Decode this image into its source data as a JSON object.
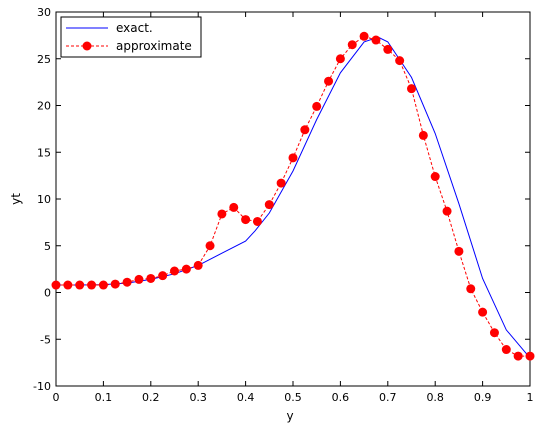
{
  "chart_data": {
    "type": "line",
    "title": "",
    "xlabel": "y",
    "ylabel": "yt",
    "xlim": [
      0,
      1
    ],
    "ylim": [
      -10,
      30
    ],
    "x_ticks": [
      "0",
      "0.1",
      "0.2",
      "0.3",
      "0.4",
      "0.5",
      "0.6",
      "0.7",
      "0.8",
      "0.9",
      "1"
    ],
    "y_ticks": [
      "-10",
      "-5",
      "0",
      "5",
      "10",
      "15",
      "20",
      "25",
      "30"
    ],
    "grid": false,
    "legend_position": "top-left",
    "series": [
      {
        "name": "exact.",
        "color": "#0000ff",
        "style": "solid",
        "marker": "none",
        "x": [
          0,
          0.05,
          0.1,
          0.15,
          0.2,
          0.25,
          0.3,
          0.35,
          0.4,
          0.42,
          0.45,
          0.5,
          0.55,
          0.6,
          0.65,
          0.68,
          0.7,
          0.75,
          0.8,
          0.85,
          0.9,
          0.95,
          1.0
        ],
        "y": [
          0.8,
          0.8,
          0.85,
          1.0,
          1.4,
          2.0,
          2.9,
          4.2,
          5.5,
          6.6,
          8.5,
          13.0,
          18.5,
          23.5,
          26.8,
          27.3,
          26.8,
          23.0,
          17.0,
          9.5,
          1.5,
          -4.0,
          -7.0
        ]
      },
      {
        "name": "approximate",
        "color": "#ff0000",
        "style": "dashed",
        "marker": "circle",
        "x": [
          0,
          0.025,
          0.05,
          0.075,
          0.1,
          0.125,
          0.15,
          0.175,
          0.2,
          0.225,
          0.25,
          0.275,
          0.3,
          0.325,
          0.35,
          0.375,
          0.4,
          0.425,
          0.45,
          0.475,
          0.5,
          0.525,
          0.55,
          0.575,
          0.6,
          0.625,
          0.65,
          0.675,
          0.7,
          0.725,
          0.75,
          0.775,
          0.8,
          0.825,
          0.85,
          0.875,
          0.9,
          0.925,
          0.95,
          0.975,
          1.0
        ],
        "y": [
          0.8,
          0.8,
          0.8,
          0.8,
          0.8,
          0.9,
          1.1,
          1.4,
          1.5,
          1.8,
          2.3,
          2.5,
          2.9,
          5.0,
          8.4,
          9.1,
          7.8,
          7.6,
          9.4,
          11.7,
          14.4,
          17.4,
          19.9,
          22.6,
          25.0,
          26.5,
          27.4,
          27.0,
          26.0,
          24.8,
          21.8,
          16.8,
          12.4,
          8.7,
          4.4,
          0.4,
          -2.1,
          -4.3,
          -6.1,
          -6.8,
          -6.8
        ]
      }
    ]
  }
}
